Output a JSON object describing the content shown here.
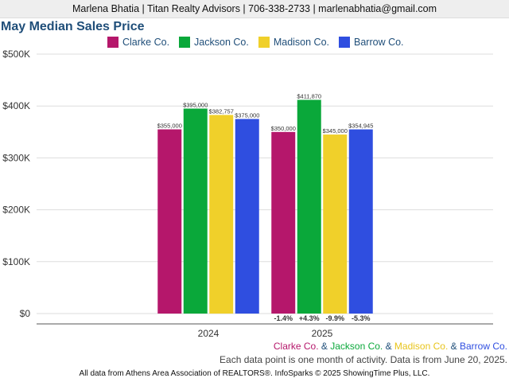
{
  "header": {
    "text": "Marlena Bhatia | Titan Realty Advisors | 706-338-2733 | marlenabhatia@gmail.com"
  },
  "chart_data": {
    "type": "bar",
    "title": "May Median Sales Price",
    "categories": [
      "2024",
      "2025"
    ],
    "series": [
      {
        "name": "Clarke Co.",
        "color": "#b5176b",
        "values": [
          355000,
          350000
        ],
        "labels": [
          "$355,000",
          "$350,000"
        ],
        "change": "-1.4%"
      },
      {
        "name": "Jackson Co.",
        "color": "#0aa83a",
        "values": [
          395000,
          411870
        ],
        "labels": [
          "$395,000",
          "$411,870"
        ],
        "change": "+4.3%"
      },
      {
        "name": "Madison Co.",
        "color": "#f0d02a",
        "values": [
          382757,
          345000
        ],
        "labels": [
          "$382,757",
          "$345,000"
        ],
        "change": "-9.9%"
      },
      {
        "name": "Barrow Co.",
        "color": "#2f4ee0",
        "values": [
          375000,
          354945
        ],
        "labels": [
          "$375,000",
          "$354,945"
        ],
        "change": "-5.3%"
      }
    ],
    "ylim": [
      0,
      500000
    ],
    "yticks": [
      0,
      100000,
      200000,
      300000,
      400000,
      500000
    ],
    "ytick_labels": [
      "$0",
      "$100K",
      "$200K",
      "$300K",
      "$400K",
      "$500K"
    ],
    "grid": true,
    "legend": "top"
  },
  "footer": {
    "series_line": [
      {
        "text": "Clarke Co.",
        "color": "#b5176b"
      },
      {
        "text": " & ",
        "color": "#1f4e79"
      },
      {
        "text": "Jackson Co.",
        "color": "#0aa83a"
      },
      {
        "text": " & ",
        "color": "#1f4e79"
      },
      {
        "text": "Madison Co.",
        "color": "#e8c41a"
      },
      {
        "text": " & ",
        "color": "#1f4e79"
      },
      {
        "text": "Barrow Co.",
        "color": "#2f4ee0"
      }
    ],
    "note": "Each data point is one month of activity. Data is from June 20, 2025.",
    "source": "All data from Athens Area Association of REALTORS®. InfoSparks © 2025 ShowingTime Plus, LLC."
  }
}
